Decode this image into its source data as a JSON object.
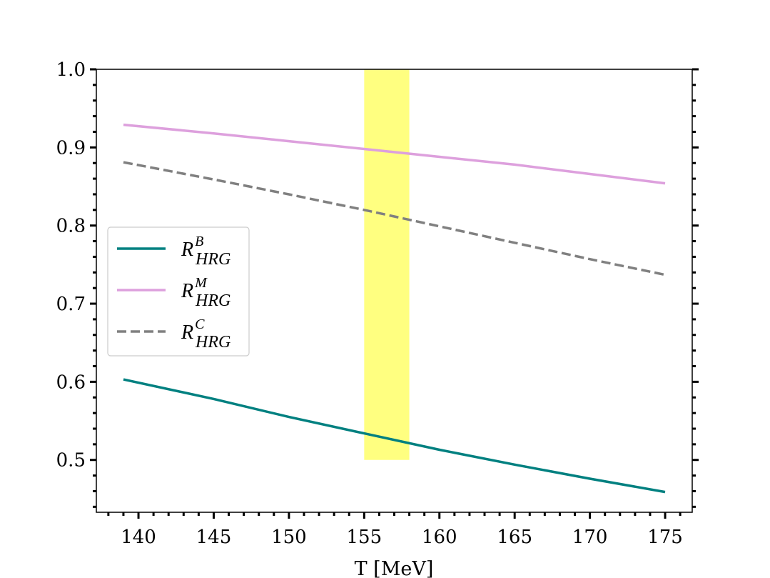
{
  "chart_data": {
    "type": "line",
    "title": "",
    "xlabel": "T [MeV]",
    "ylabel": "",
    "xlim": [
      137.2,
      176.8
    ],
    "ylim": [
      0.433,
      1.0
    ],
    "xticks": [
      140,
      145,
      150,
      155,
      160,
      165,
      170,
      175
    ],
    "yticks": [
      0.5,
      0.6,
      0.7,
      0.8,
      0.9,
      1.0
    ],
    "xtick_labels": [
      "140",
      "145",
      "150",
      "155",
      "160",
      "165",
      "170",
      "175"
    ],
    "ytick_labels": [
      "0.5",
      "0.6",
      "0.7",
      "0.8",
      "0.9",
      "1.0"
    ],
    "grid": false,
    "legend_position": "center-left",
    "band": {
      "x": [
        155,
        158
      ],
      "y": [
        0.5,
        1.0
      ],
      "color": "#ffff80"
    },
    "series": [
      {
        "name": "R",
        "sup": "B",
        "sub": "HRG",
        "color": "#008080",
        "dash": "solid",
        "x": [
          139,
          145,
          150,
          155,
          160,
          165,
          170,
          175
        ],
        "y": [
          0.603,
          0.578,
          0.555,
          0.534,
          0.513,
          0.494,
          0.476,
          0.459
        ]
      },
      {
        "name": "R",
        "sup": "M",
        "sub": "HRG",
        "color": "#dda0dd",
        "dash": "solid",
        "x": [
          139,
          145,
          150,
          155,
          160,
          165,
          170,
          175
        ],
        "y": [
          0.929,
          0.918,
          0.908,
          0.898,
          0.888,
          0.878,
          0.866,
          0.854
        ]
      },
      {
        "name": "R",
        "sup": "C",
        "sub": "HRG",
        "color": "#808080",
        "dash": "dashed",
        "x": [
          139,
          145,
          150,
          155,
          160,
          165,
          170,
          175
        ],
        "y": [
          0.881,
          0.859,
          0.84,
          0.82,
          0.799,
          0.778,
          0.757,
          0.737
        ]
      }
    ]
  }
}
